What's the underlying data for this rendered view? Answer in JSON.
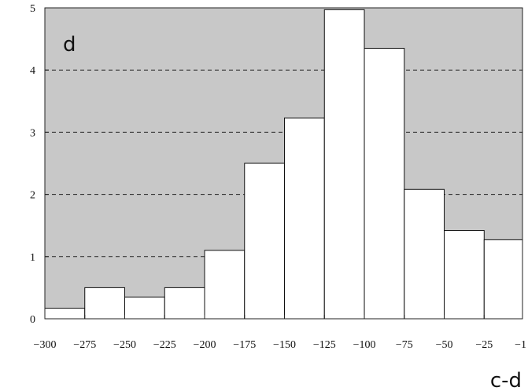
{
  "chart_data": {
    "type": "bar",
    "panel_label": "d",
    "xlabel": "c-d",
    "ylabel": "",
    "bin_edges": [
      -300,
      -275,
      -250,
      -225,
      -200,
      -175,
      -150,
      -125,
      -100,
      -75,
      -50,
      -25,
      -1
    ],
    "values": [
      0.17,
      0.5,
      0.35,
      0.5,
      1.1,
      2.5,
      3.23,
      4.97,
      4.35,
      2.08,
      1.42,
      1.27
    ],
    "xlim": [
      -300,
      -1
    ],
    "ylim": [
      0,
      5
    ],
    "x_ticks": [
      -300,
      -275,
      -250,
      -225,
      -200,
      -175,
      -150,
      -125,
      -100,
      -75,
      -50,
      -25,
      -1
    ],
    "x_tick_labels": [
      "−300",
      "−275",
      "−250",
      "−225",
      "−200",
      "−175",
      "−150",
      "−125",
      "−100",
      "−75",
      "−50",
      "−25",
      "−1"
    ],
    "y_ticks": [
      0,
      1,
      2,
      3,
      4,
      5
    ],
    "y_tick_labels": [
      "0",
      "1",
      "2",
      "3",
      "4",
      "5"
    ],
    "grid": "horizontal dashed",
    "colors": {
      "plot_background": "#c8c8c8",
      "bar_fill": "#ffffff",
      "bar_stroke": "#111111",
      "grid": "#222222"
    }
  }
}
